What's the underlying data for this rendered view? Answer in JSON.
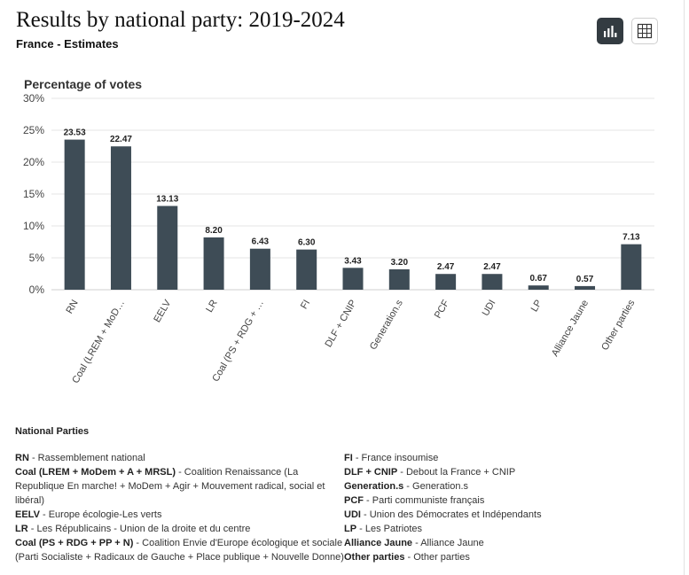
{
  "header": {
    "title": "Results by national party: 2019-2024",
    "subtitle": "France - Estimates"
  },
  "controls": {
    "chart_view_icon": "bar-chart-icon",
    "table_view_icon": "table-grid-icon",
    "active_color": "#333b41"
  },
  "chart_data": {
    "type": "bar",
    "ylabel": "Percentage of votes",
    "ylim": [
      0,
      30
    ],
    "yticks": [
      0,
      5,
      10,
      15,
      20,
      25,
      30
    ],
    "ytick_labels": [
      "0%",
      "5%",
      "10%",
      "15%",
      "20%",
      "25%",
      "30%"
    ],
    "categories": [
      "RN",
      "Coal (LREM + MoD…",
      "EELV",
      "LR",
      "Coal (PS + RDG + …",
      "FI",
      "DLF + CNIP",
      "Generation.s",
      "PCF",
      "UDI",
      "LP",
      "Alliance Jaune",
      "Other parties"
    ],
    "values": [
      23.53,
      22.47,
      13.13,
      8.2,
      6.43,
      6.3,
      3.43,
      3.2,
      2.47,
      2.47,
      0.67,
      0.57,
      7.13
    ],
    "value_labels": [
      "23.53",
      "22.47",
      "13.13",
      "8.20",
      "6.43",
      "6.30",
      "3.43",
      "3.20",
      "2.47",
      "2.47",
      "0.67",
      "0.57",
      "7.13"
    ],
    "bar_color": "#3e4c56",
    "grid": true,
    "label_rotation": "-60deg"
  },
  "legend": {
    "title": "National Parties",
    "left": [
      {
        "abbr": "RN",
        "full": " - Rassemblement national"
      },
      {
        "abbr": "Coal (LREM + MoDem + A + MRSL)",
        "full": " - Coalition Renaissance (La Republique En marche! + MoDem + Agir + Mouvement radical, social et libéral)"
      },
      {
        "abbr": "EELV",
        "full": " - Europe écologie-Les verts"
      },
      {
        "abbr": "LR",
        "full": " - Les Républicains - Union de la droite et du centre"
      },
      {
        "abbr": "Coal (PS + RDG + PP + N)",
        "full": " - Coalition Envie d'Europe écologique et sociale (Parti Socialiste + Radicaux de Gauche + Place publique + Nouvelle Donne)"
      }
    ],
    "right": [
      {
        "abbr": "FI",
        "full": " - France insoumise"
      },
      {
        "abbr": "DLF + CNIP",
        "full": " - Debout la France + CNIP"
      },
      {
        "abbr": "Generation.s",
        "full": " - Generation.s"
      },
      {
        "abbr": "PCF",
        "full": " - Parti communiste français"
      },
      {
        "abbr": "UDI",
        "full": " - Union des Démocrates et Indépendants"
      },
      {
        "abbr": "LP",
        "full": " - Les Patriotes"
      },
      {
        "abbr": "Alliance Jaune",
        "full": " - Alliance Jaune"
      },
      {
        "abbr": "Other parties",
        "full": " - Other parties"
      }
    ]
  }
}
